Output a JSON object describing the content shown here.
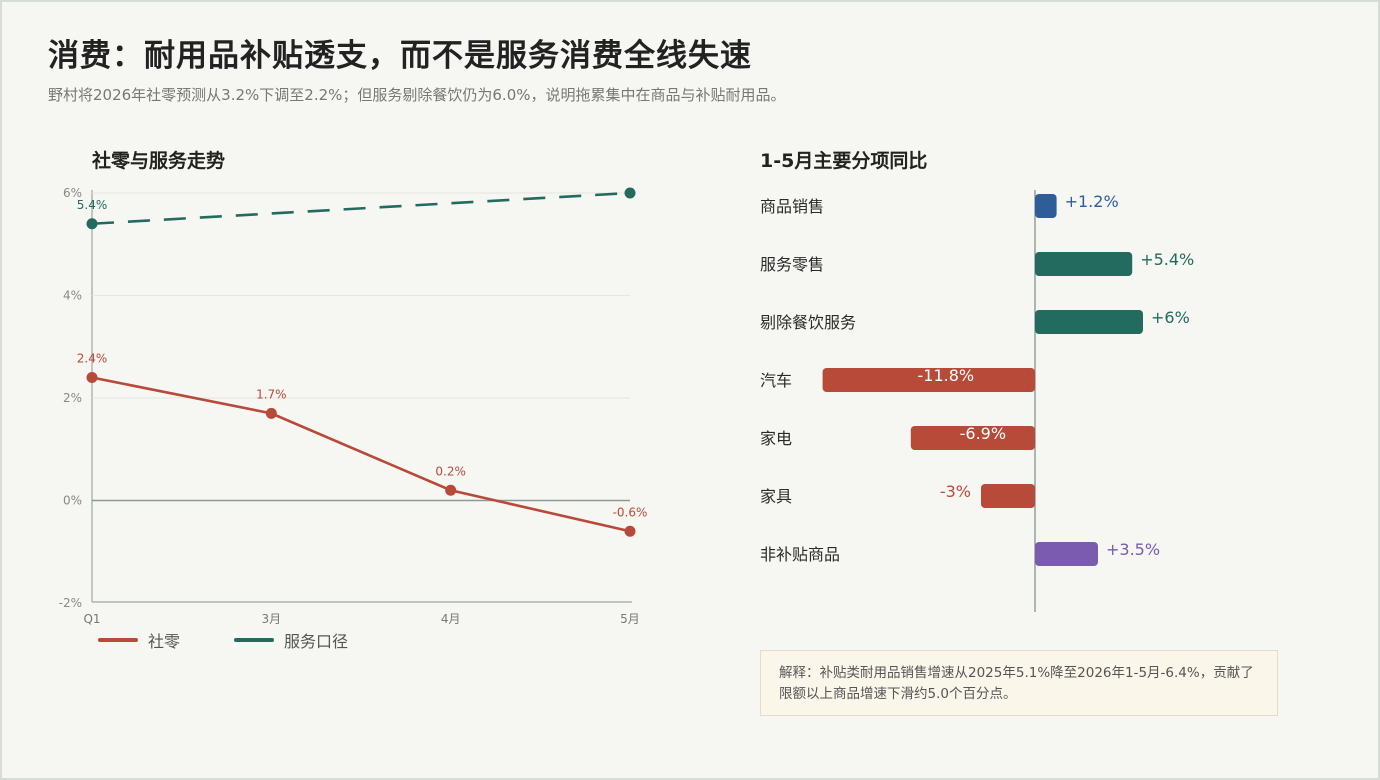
{
  "title": "消费：耐用品补贴透支，而不是服务消费全线失速",
  "subtitle": "野村将2026年社零预测从3.2%下调至2.2%；但服务剔除餐饮仍为6.0%，说明拖累集中在商品与补贴耐用品。",
  "note": "解释：补贴类耐用品销售增速从2025年5.1%降至2026年1-5月-6.4%，贡献了限额以上商品增速下滑约5.0个百分点。",
  "colors": {
    "retail": "#b84a3a",
    "service": "#236a5f",
    "goods": "#2f5d99",
    "nonsubsidy": "#7a5bb0",
    "negative": "#b84a3a"
  },
  "chart_data": [
    {
      "type": "line",
      "title": "社零与服务走势",
      "categories": [
        "Q1",
        "3月",
        "4月",
        "5月"
      ],
      "ylim": [
        -2,
        6
      ],
      "yticks": [
        "-2%",
        "0%",
        "2%",
        "4%",
        "6%"
      ],
      "grid": true,
      "legend": "bottom-left",
      "series": [
        {
          "name": "社零",
          "values": [
            2.4,
            1.7,
            0.2,
            -0.6
          ],
          "labels": [
            "2.4%",
            "1.7%",
            "0.2%",
            "-0.6%"
          ],
          "style": "solid"
        },
        {
          "name": "服务口径",
          "values": [
            5.4,
            null,
            null,
            6.0
          ],
          "labels": [
            "5.4%",
            "",
            "",
            "6%"
          ],
          "style": "dashed"
        }
      ]
    },
    {
      "type": "bar",
      "title": "1-5月主要分项同比",
      "orientation": "horizontal",
      "categories": [
        "商品销售",
        "服务零售",
        "剔除餐饮服务",
        "汽车",
        "家电",
        "家具",
        "非补贴商品"
      ],
      "values": [
        1.2,
        5.4,
        6.0,
        -11.8,
        -6.9,
        -3.0,
        3.5
      ],
      "labels": [
        "+1.2%",
        "+5.4%",
        "+6%",
        "-11.8%",
        "-6.9%",
        "-3%",
        "+3.5%"
      ]
    }
  ]
}
